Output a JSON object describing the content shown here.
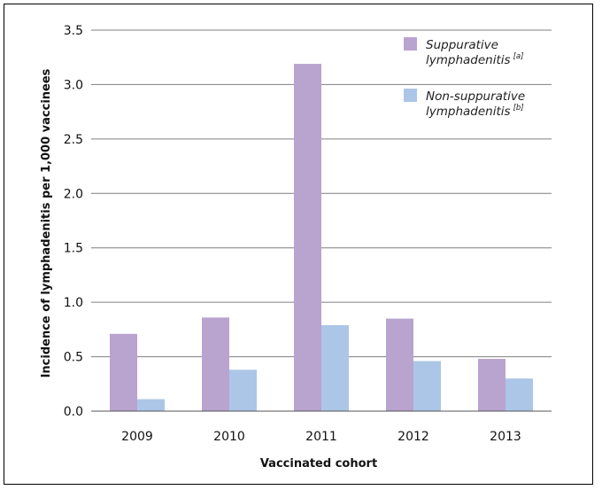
{
  "chart_data": {
    "type": "bar",
    "categories": [
      "2009",
      "2010",
      "2011",
      "2012",
      "2013"
    ],
    "series": [
      {
        "name": "Suppurative lymphadenitis [a]",
        "label_lines": [
          "Suppurative",
          "lymphadenitis"
        ],
        "note": "[a]",
        "color": "#b9a3cf",
        "values": [
          0.71,
          0.86,
          3.19,
          0.85,
          0.48
        ]
      },
      {
        "name": "Non-suppurative lymphadenitis [b]",
        "label_lines": [
          "Non-suppurative",
          "lymphadenitis"
        ],
        "note": "[b]",
        "color": "#acc6e7",
        "values": [
          0.11,
          0.38,
          0.79,
          0.46,
          0.3
        ]
      }
    ],
    "xlabel": "Vaccinated cohort",
    "ylabel": "Incidence of lymphadenitis per 1,000 vaccinees",
    "ylim": [
      0,
      3.5
    ],
    "yticks": [
      "0.0",
      "0.5",
      "1.0",
      "1.5",
      "2.0",
      "2.5",
      "3.0",
      "3.5"
    ],
    "grid": true,
    "legend_position": "top-right"
  }
}
